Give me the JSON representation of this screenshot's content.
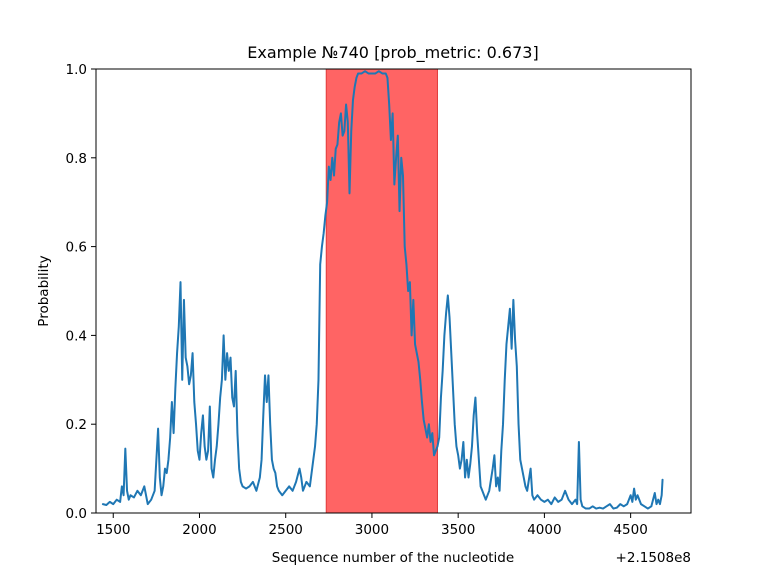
{
  "chart_data": {
    "type": "line",
    "title": "Example №740 [prob_metric: 0.673]",
    "xlabel": "Sequence number of the nucleotide",
    "ylabel": "Probability",
    "x_offset_label": "+2.1508e8",
    "xlim": [
      1400,
      4850
    ],
    "ylim": [
      0,
      1
    ],
    "x_ticks": [
      1500,
      2000,
      2500,
      3000,
      3500,
      4000,
      4500
    ],
    "x_tick_labels": [
      "1500",
      "2000",
      "2500",
      "3000",
      "3500",
      "4000",
      "4500"
    ],
    "y_ticks": [
      0,
      0.2,
      0.4,
      0.6,
      0.8,
      1.0
    ],
    "y_tick_labels": [
      "0.0",
      "0.2",
      "0.4",
      "0.6",
      "0.8",
      "1.0"
    ],
    "grid": false,
    "highlight_region": {
      "x_start": 2735,
      "x_end": 3380,
      "color": "#ff6464"
    },
    "series": [
      {
        "color": "#1f77b4",
        "points": [
          [
            1440,
            0.02
          ],
          [
            1460,
            0.018
          ],
          [
            1480,
            0.025
          ],
          [
            1500,
            0.02
          ],
          [
            1520,
            0.03
          ],
          [
            1540,
            0.025
          ],
          [
            1550,
            0.06
          ],
          [
            1560,
            0.04
          ],
          [
            1570,
            0.145
          ],
          [
            1580,
            0.05
          ],
          [
            1590,
            0.03
          ],
          [
            1600,
            0.04
          ],
          [
            1620,
            0.035
          ],
          [
            1640,
            0.05
          ],
          [
            1660,
            0.04
          ],
          [
            1680,
            0.06
          ],
          [
            1700,
            0.02
          ],
          [
            1720,
            0.03
          ],
          [
            1740,
            0.05
          ],
          [
            1760,
            0.19
          ],
          [
            1770,
            0.08
          ],
          [
            1780,
            0.04
          ],
          [
            1790,
            0.06
          ],
          [
            1800,
            0.1
          ],
          [
            1810,
            0.09
          ],
          [
            1820,
            0.12
          ],
          [
            1830,
            0.17
          ],
          [
            1840,
            0.25
          ],
          [
            1850,
            0.18
          ],
          [
            1860,
            0.28
          ],
          [
            1870,
            0.36
          ],
          [
            1880,
            0.42
          ],
          [
            1890,
            0.52
          ],
          [
            1900,
            0.3
          ],
          [
            1910,
            0.48
          ],
          [
            1920,
            0.35
          ],
          [
            1930,
            0.33
          ],
          [
            1940,
            0.29
          ],
          [
            1950,
            0.31
          ],
          [
            1960,
            0.36
          ],
          [
            1970,
            0.25
          ],
          [
            1980,
            0.2
          ],
          [
            1990,
            0.14
          ],
          [
            2000,
            0.12
          ],
          [
            2010,
            0.18
          ],
          [
            2020,
            0.22
          ],
          [
            2030,
            0.15
          ],
          [
            2040,
            0.12
          ],
          [
            2050,
            0.14
          ],
          [
            2060,
            0.24
          ],
          [
            2070,
            0.1
          ],
          [
            2080,
            0.08
          ],
          [
            2090,
            0.12
          ],
          [
            2100,
            0.15
          ],
          [
            2110,
            0.2
          ],
          [
            2120,
            0.26
          ],
          [
            2130,
            0.3
          ],
          [
            2140,
            0.4
          ],
          [
            2150,
            0.3
          ],
          [
            2160,
            0.36
          ],
          [
            2170,
            0.32
          ],
          [
            2180,
            0.35
          ],
          [
            2190,
            0.26
          ],
          [
            2200,
            0.24
          ],
          [
            2210,
            0.32
          ],
          [
            2220,
            0.18
          ],
          [
            2230,
            0.1
          ],
          [
            2240,
            0.07
          ],
          [
            2250,
            0.06
          ],
          [
            2270,
            0.055
          ],
          [
            2290,
            0.06
          ],
          [
            2310,
            0.07
          ],
          [
            2330,
            0.05
          ],
          [
            2350,
            0.08
          ],
          [
            2360,
            0.12
          ],
          [
            2370,
            0.22
          ],
          [
            2380,
            0.31
          ],
          [
            2390,
            0.25
          ],
          [
            2400,
            0.31
          ],
          [
            2410,
            0.2
          ],
          [
            2420,
            0.12
          ],
          [
            2430,
            0.1
          ],
          [
            2440,
            0.09
          ],
          [
            2450,
            0.06
          ],
          [
            2460,
            0.05
          ],
          [
            2480,
            0.04
          ],
          [
            2500,
            0.05
          ],
          [
            2520,
            0.06
          ],
          [
            2540,
            0.05
          ],
          [
            2560,
            0.07
          ],
          [
            2580,
            0.1
          ],
          [
            2590,
            0.08
          ],
          [
            2600,
            0.05
          ],
          [
            2620,
            0.07
          ],
          [
            2640,
            0.06
          ],
          [
            2660,
            0.12
          ],
          [
            2670,
            0.15
          ],
          [
            2680,
            0.2
          ],
          [
            2690,
            0.3
          ],
          [
            2700,
            0.56
          ],
          [
            2710,
            0.6
          ],
          [
            2720,
            0.63
          ],
          [
            2730,
            0.67
          ],
          [
            2740,
            0.7
          ],
          [
            2750,
            0.78
          ],
          [
            2760,
            0.75
          ],
          [
            2770,
            0.8
          ],
          [
            2780,
            0.76
          ],
          [
            2790,
            0.82
          ],
          [
            2800,
            0.83
          ],
          [
            2810,
            0.88
          ],
          [
            2820,
            0.9
          ],
          [
            2830,
            0.85
          ],
          [
            2840,
            0.86
          ],
          [
            2850,
            0.92
          ],
          [
            2860,
            0.88
          ],
          [
            2870,
            0.72
          ],
          [
            2880,
            0.86
          ],
          [
            2890,
            0.93
          ],
          [
            2900,
            0.96
          ],
          [
            2910,
            0.98
          ],
          [
            2920,
            0.99
          ],
          [
            2940,
            0.99
          ],
          [
            2960,
            0.995
          ],
          [
            2980,
            0.99
          ],
          [
            3000,
            0.99
          ],
          [
            3020,
            0.99
          ],
          [
            3040,
            0.995
          ],
          [
            3060,
            0.99
          ],
          [
            3080,
            0.99
          ],
          [
            3090,
            0.98
          ],
          [
            3100,
            0.92
          ],
          [
            3110,
            0.84
          ],
          [
            3120,
            0.9
          ],
          [
            3130,
            0.74
          ],
          [
            3140,
            0.8
          ],
          [
            3150,
            0.85
          ],
          [
            3160,
            0.68
          ],
          [
            3170,
            0.8
          ],
          [
            3180,
            0.76
          ],
          [
            3190,
            0.6
          ],
          [
            3200,
            0.56
          ],
          [
            3210,
            0.5
          ],
          [
            3220,
            0.52
          ],
          [
            3230,
            0.4
          ],
          [
            3240,
            0.48
          ],
          [
            3250,
            0.38
          ],
          [
            3260,
            0.36
          ],
          [
            3270,
            0.34
          ],
          [
            3280,
            0.3
          ],
          [
            3290,
            0.25
          ],
          [
            3300,
            0.21
          ],
          [
            3310,
            0.19
          ],
          [
            3320,
            0.17
          ],
          [
            3330,
            0.2
          ],
          [
            3340,
            0.16
          ],
          [
            3350,
            0.18
          ],
          [
            3360,
            0.13
          ],
          [
            3370,
            0.14
          ],
          [
            3380,
            0.15
          ],
          [
            3390,
            0.17
          ],
          [
            3400,
            0.26
          ],
          [
            3410,
            0.32
          ],
          [
            3420,
            0.4
          ],
          [
            3430,
            0.45
          ],
          [
            3440,
            0.49
          ],
          [
            3450,
            0.44
          ],
          [
            3460,
            0.36
          ],
          [
            3470,
            0.28
          ],
          [
            3480,
            0.2
          ],
          [
            3490,
            0.15
          ],
          [
            3500,
            0.13
          ],
          [
            3510,
            0.1
          ],
          [
            3520,
            0.12
          ],
          [
            3530,
            0.16
          ],
          [
            3540,
            0.08
          ],
          [
            3550,
            0.12
          ],
          [
            3560,
            0.08
          ],
          [
            3570,
            0.11
          ],
          [
            3580,
            0.15
          ],
          [
            3590,
            0.22
          ],
          [
            3600,
            0.26
          ],
          [
            3610,
            0.18
          ],
          [
            3620,
            0.12
          ],
          [
            3630,
            0.06
          ],
          [
            3640,
            0.05
          ],
          [
            3650,
            0.04
          ],
          [
            3660,
            0.03
          ],
          [
            3680,
            0.05
          ],
          [
            3700,
            0.1
          ],
          [
            3710,
            0.13
          ],
          [
            3720,
            0.06
          ],
          [
            3730,
            0.08
          ],
          [
            3740,
            0.05
          ],
          [
            3750,
            0.14
          ],
          [
            3760,
            0.2
          ],
          [
            3770,
            0.3
          ],
          [
            3780,
            0.38
          ],
          [
            3790,
            0.42
          ],
          [
            3800,
            0.46
          ],
          [
            3810,
            0.37
          ],
          [
            3820,
            0.48
          ],
          [
            3830,
            0.39
          ],
          [
            3840,
            0.33
          ],
          [
            3850,
            0.2
          ],
          [
            3860,
            0.12
          ],
          [
            3870,
            0.1
          ],
          [
            3880,
            0.08
          ],
          [
            3890,
            0.06
          ],
          [
            3900,
            0.05
          ],
          [
            3920,
            0.1
          ],
          [
            3930,
            0.04
          ],
          [
            3940,
            0.03
          ],
          [
            3960,
            0.04
          ],
          [
            3980,
            0.03
          ],
          [
            4000,
            0.025
          ],
          [
            4020,
            0.03
          ],
          [
            4040,
            0.02
          ],
          [
            4060,
            0.035
          ],
          [
            4080,
            0.025
          ],
          [
            4100,
            0.03
          ],
          [
            4120,
            0.05
          ],
          [
            4140,
            0.03
          ],
          [
            4160,
            0.02
          ],
          [
            4180,
            0.03
          ],
          [
            4190,
            0.02
          ],
          [
            4200,
            0.16
          ],
          [
            4210,
            0.03
          ],
          [
            4220,
            0.015
          ],
          [
            4240,
            0.01
          ],
          [
            4260,
            0.01
          ],
          [
            4280,
            0.015
          ],
          [
            4300,
            0.01
          ],
          [
            4320,
            0.012
          ],
          [
            4340,
            0.01
          ],
          [
            4360,
            0.015
          ],
          [
            4380,
            0.02
          ],
          [
            4400,
            0.01
          ],
          [
            4420,
            0.012
          ],
          [
            4440,
            0.02
          ],
          [
            4460,
            0.015
          ],
          [
            4480,
            0.02
          ],
          [
            4490,
            0.03
          ],
          [
            4500,
            0.04
          ],
          [
            4510,
            0.025
          ],
          [
            4520,
            0.055
          ],
          [
            4530,
            0.03
          ],
          [
            4540,
            0.04
          ],
          [
            4560,
            0.02
          ],
          [
            4580,
            0.015
          ],
          [
            4600,
            0.01
          ],
          [
            4620,
            0.015
          ],
          [
            4640,
            0.045
          ],
          [
            4650,
            0.02
          ],
          [
            4660,
            0.03
          ],
          [
            4670,
            0.02
          ],
          [
            4680,
            0.04
          ],
          [
            4685,
            0.075
          ]
        ]
      }
    ]
  }
}
